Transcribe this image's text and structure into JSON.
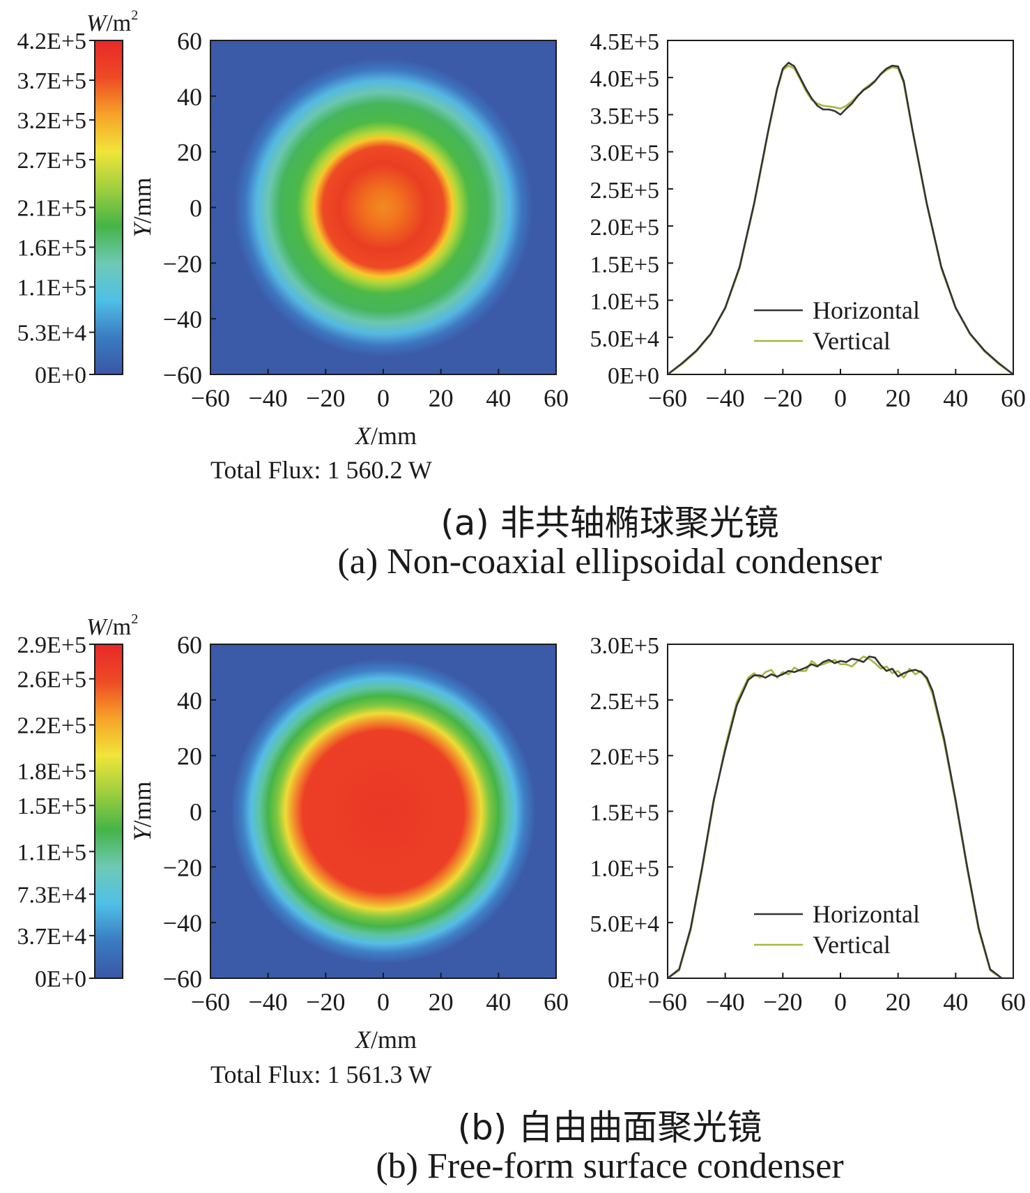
{
  "panels": [
    {
      "id": "a",
      "colorbar": {
        "unit_symbol": "W",
        "unit_rest": "/m",
        "unit_sup": "2",
        "tick_labels": [
          "4.2E+5",
          "3.7E+5",
          "3.2E+5",
          "2.7E+5",
          "2.1E+5",
          "1.6E+5",
          "1.1E+5",
          "5.3E+4",
          "0E+0"
        ],
        "tick_values": [
          420000,
          370000,
          320000,
          270000,
          210000,
          160000,
          110000,
          53000,
          0
        ]
      },
      "heatmap": {
        "type": "heatmap",
        "xlabel_var": "X",
        "xlabel_unit": "/mm",
        "ylabel_var": "Y",
        "ylabel_unit": "/mm",
        "xlim": [
          -60,
          60
        ],
        "ylim": [
          -60,
          60
        ],
        "x_ticks": [
          "−60",
          "−40",
          "−20",
          "0",
          "20",
          "40",
          "60"
        ],
        "y_ticks": [
          "60",
          "40",
          "20",
          "0",
          "−20",
          "−40",
          "−60"
        ],
        "radial_profile": [
          {
            "r": 0,
            "color": "#f28a22"
          },
          {
            "r": 6,
            "color": "#f2731e"
          },
          {
            "r": 15,
            "color": "#ea3d23"
          },
          {
            "r": 21,
            "color": "#ee4a25"
          },
          {
            "r": 24,
            "color": "#f6c92a"
          },
          {
            "r": 26,
            "color": "#b7d73a"
          },
          {
            "r": 30,
            "color": "#4cb947"
          },
          {
            "r": 36,
            "color": "#45b55c"
          },
          {
            "r": 40,
            "color": "#6bc7b0"
          },
          {
            "r": 44,
            "color": "#55b8e2"
          },
          {
            "r": 48,
            "color": "#3d76c0"
          },
          {
            "r": 52,
            "color": "#3b5aa8"
          }
        ]
      },
      "flux_label": "Total Flux: 1 560.2 W",
      "profile": {
        "type": "line",
        "xlim": [
          -60,
          60
        ],
        "ylim": [
          0,
          450000
        ],
        "x_ticks": [
          "−60",
          "−40",
          "−20",
          "0",
          "20",
          "40",
          "60"
        ],
        "y_tick_labels": [
          "4.5E+5",
          "4.0E+5",
          "3.5E+5",
          "3.0E+5",
          "2.5E+5",
          "2.0E+5",
          "1.5E+5",
          "1.0E+5",
          "5.0E+4",
          "0E+0"
        ],
        "y_tick_values": [
          450000,
          400000,
          350000,
          300000,
          250000,
          200000,
          150000,
          100000,
          50000,
          0
        ],
        "legend": [
          "Horizontal",
          "Vertical"
        ],
        "series": [
          {
            "name": "Horizontal",
            "color": "#333333",
            "x": [
              -60,
              -55,
              -50,
              -45,
              -40,
              -35,
              -30,
              -25,
              -22,
              -20,
              -18,
              -16,
              -14,
              -12,
              -10,
              -8,
              -6,
              -4,
              -2,
              0,
              2,
              4,
              6,
              8,
              10,
              12,
              14,
              16,
              18,
              20,
              22,
              25,
              30,
              35,
              40,
              45,
              50,
              55,
              60
            ],
            "y": [
              0,
              15000,
              32000,
              55000,
              90000,
              145000,
              230000,
              330000,
              385000,
              412000,
              420000,
              415000,
              400000,
              385000,
              372000,
              362000,
              357000,
              357000,
              355000,
              350000,
              358000,
              365000,
              375000,
              383000,
              388000,
              395000,
              405000,
              412000,
              416000,
              415000,
              395000,
              330000,
              230000,
              145000,
              90000,
              55000,
              32000,
              15000,
              0
            ]
          },
          {
            "name": "Vertical",
            "color": "#a6b83c",
            "x": [
              -60,
              -55,
              -50,
              -45,
              -40,
              -35,
              -30,
              -25,
              -22,
              -20,
              -18,
              -16,
              -14,
              -12,
              -10,
              -8,
              -6,
              -4,
              -2,
              0,
              2,
              4,
              6,
              8,
              10,
              12,
              14,
              16,
              18,
              20,
              22,
              25,
              30,
              35,
              40,
              45,
              50,
              55,
              60
            ],
            "y": [
              0,
              14000,
              31000,
              54000,
              89000,
              143000,
              228000,
              328000,
              383000,
              410000,
              416000,
              412000,
              398000,
              382000,
              370000,
              365000,
              362000,
              361000,
              360000,
              358000,
              362000,
              368000,
              376000,
              384000,
              390000,
              396000,
              404000,
              410000,
              414000,
              412000,
              392000,
              328000,
              228000,
              143000,
              89000,
              54000,
              31000,
              14000,
              0
            ]
          }
        ]
      },
      "caption_cn": "(a) 非共轴椭球聚光镜",
      "caption_en": "(a) Non-coaxial ellipsoidal condenser"
    },
    {
      "id": "b",
      "colorbar": {
        "unit_symbol": "W",
        "unit_rest": "/m",
        "unit_sup": "2",
        "tick_labels": [
          "2.9E+5",
          "2.6E+5",
          "2.2E+5",
          "1.8E+5",
          "1.5E+5",
          "1.1E+5",
          "7.3E+4",
          "3.7E+4",
          "0E+0"
        ],
        "tick_values": [
          290000,
          260000,
          220000,
          180000,
          150000,
          110000,
          73000,
          37000,
          0
        ]
      },
      "heatmap": {
        "type": "heatmap",
        "xlabel_var": "X",
        "xlabel_unit": "/mm",
        "ylabel_var": "Y",
        "ylabel_unit": "/mm",
        "xlim": [
          -60,
          60
        ],
        "ylim": [
          -60,
          60
        ],
        "x_ticks": [
          "−60",
          "−40",
          "−20",
          "0",
          "20",
          "40",
          "60"
        ],
        "y_ticks": [
          "60",
          "40",
          "20",
          "0",
          "−20",
          "−40",
          "−60"
        ],
        "radial_profile": [
          {
            "r": 0,
            "color": "#ea3826"
          },
          {
            "r": 28,
            "color": "#ec3f26"
          },
          {
            "r": 31,
            "color": "#f28a2a"
          },
          {
            "r": 34,
            "color": "#eedc36"
          },
          {
            "r": 37,
            "color": "#7dc641"
          },
          {
            "r": 40,
            "color": "#45b448"
          },
          {
            "r": 43,
            "color": "#5ec4a2"
          },
          {
            "r": 46,
            "color": "#56bde6"
          },
          {
            "r": 49,
            "color": "#3f80c6"
          },
          {
            "r": 53,
            "color": "#3b5aa8"
          }
        ]
      },
      "flux_label": "Total Flux: 1 561.3 W",
      "profile": {
        "type": "line",
        "xlim": [
          -60,
          60
        ],
        "ylim": [
          0,
          300000
        ],
        "x_ticks": [
          "−60",
          "−40",
          "−20",
          "0",
          "20",
          "40",
          "60"
        ],
        "y_tick_labels": [
          "3.0E+5",
          "2.5E+5",
          "2.0E+5",
          "1.5E+5",
          "1.0E+5",
          "5.0E+4",
          "0E+0"
        ],
        "y_tick_values": [
          300000,
          250000,
          200000,
          150000,
          100000,
          50000,
          0
        ],
        "legend": [
          "Horizontal",
          "Vertical"
        ],
        "series": [
          {
            "name": "Horizontal",
            "color": "#333333",
            "x": [
              -60,
              -56,
              -52,
              -48,
              -44,
              -40,
              -36,
              -32,
              -30,
              -28,
              -26,
              -24,
              -22,
              -20,
              -18,
              -16,
              -14,
              -12,
              -10,
              -8,
              -6,
              -4,
              -2,
              0,
              2,
              4,
              6,
              8,
              10,
              12,
              14,
              16,
              18,
              20,
              22,
              24,
              26,
              28,
              30,
              32,
              36,
              40,
              44,
              48,
              52,
              56,
              60
            ],
            "y": [
              0,
              8000,
              45000,
              100000,
              160000,
              205000,
              245000,
              268000,
              272000,
              272000,
              270000,
              273000,
              271000,
              273000,
              276000,
              275000,
              277000,
              279000,
              282000,
              280000,
              284000,
              286000,
              283000,
              285000,
              284000,
              287000,
              286000,
              284000,
              289000,
              288000,
              281000,
              276000,
              278000,
              271000,
              274000,
              276000,
              277000,
              275000,
              270000,
              258000,
              215000,
              160000,
              100000,
              45000,
              8000,
              0,
              0
            ]
          },
          {
            "name": "Vertical",
            "color": "#a6b83c",
            "x": [
              -60,
              -56,
              -52,
              -48,
              -44,
              -40,
              -36,
              -32,
              -30,
              -28,
              -26,
              -24,
              -22,
              -20,
              -18,
              -16,
              -14,
              -12,
              -10,
              -8,
              -6,
              -4,
              -2,
              0,
              2,
              4,
              6,
              8,
              10,
              12,
              14,
              16,
              18,
              20,
              22,
              24,
              26,
              28,
              30,
              32,
              36,
              40,
              44,
              48,
              52,
              56,
              60
            ],
            "y": [
              0,
              7000,
              43000,
              98000,
              158000,
              208000,
              248000,
              270000,
              274000,
              270000,
              275000,
              277000,
              270000,
              275000,
              273000,
              279000,
              276000,
              276000,
              285000,
              281000,
              282000,
              284000,
              286000,
              282000,
              282000,
              280000,
              285000,
              289000,
              287000,
              283000,
              278000,
              280000,
              274000,
              276000,
              270000,
              278000,
              273000,
              276000,
              268000,
              255000,
              212000,
              158000,
              98000,
              43000,
              7000,
              0,
              0
            ]
          }
        ]
      },
      "caption_cn": "(b) 自由曲面聚光镜",
      "caption_en": "(b) Free-form surface condenser"
    }
  ],
  "colorbar_stops": [
    "#3b56a6",
    "#3a7bc2",
    "#4fc0e6",
    "#6fc9b5",
    "#45b448",
    "#9fcf3e",
    "#f0e53a",
    "#f6a328",
    "#ee4a25",
    "#e8282a"
  ]
}
